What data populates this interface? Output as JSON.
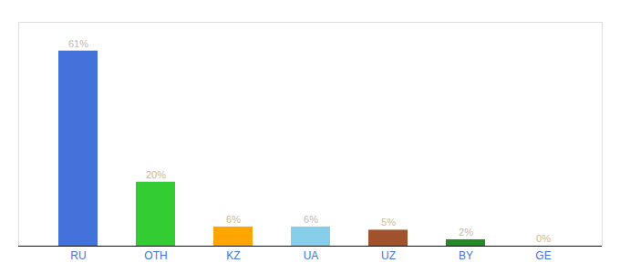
{
  "chart_data": {
    "type": "bar",
    "categories": [
      "RU",
      "OTH",
      "KZ",
      "UA",
      "UZ",
      "BY",
      "GE"
    ],
    "values": [
      61,
      20,
      6,
      6,
      5,
      2,
      0
    ],
    "value_labels": [
      "61%",
      "20%",
      "6%",
      "6%",
      "5%",
      "2%",
      "0%"
    ],
    "colors": [
      "#4472DB",
      "#33CC33",
      "#FFA500",
      "#87CEEB",
      "#A0522D",
      "#228B22",
      "#D3D3D3"
    ],
    "ylim": [
      0,
      70
    ],
    "data_labels": true,
    "tick_labels": "x",
    "grid": false
  }
}
